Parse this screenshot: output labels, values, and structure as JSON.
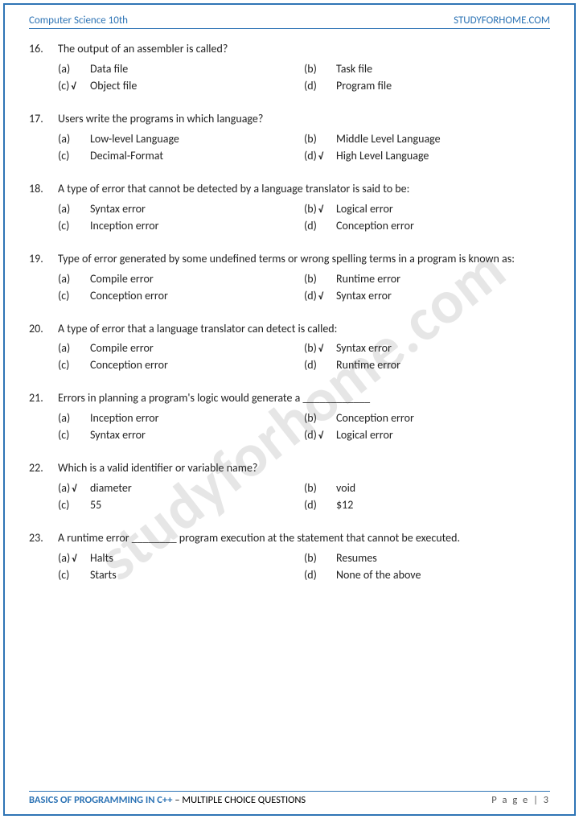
{
  "header": {
    "left": "Computer Science 10th",
    "right": "STUDYFORHOME.COM"
  },
  "watermark": "studyforhome.com",
  "footer": {
    "left_blue": "BASICS OF PROGRAMMING IN C++",
    "left_rest": " – MULTIPLE CHOICE QUESTIONS",
    "right": "P a g e  | 3"
  },
  "questions": [
    {
      "num": "16.",
      "text": "The output of an assembler is called?",
      "opts": [
        {
          "l": "(a)",
          "t": "Data file",
          "c": false
        },
        {
          "l": "(b)",
          "t": "Task file",
          "c": false
        },
        {
          "l": "(c)",
          "t": "Object file",
          "c": true
        },
        {
          "l": "(d)",
          "t": "Program file",
          "c": false
        }
      ]
    },
    {
      "num": "17.",
      "text": "Users write the programs in which language?",
      "opts": [
        {
          "l": "(a)",
          "t": "Low-level Language",
          "c": false
        },
        {
          "l": "(b)",
          "t": "Middle Level Language",
          "c": false
        },
        {
          "l": "(c)",
          "t": "Decimal-Format",
          "c": false
        },
        {
          "l": "(d)",
          "t": "High Level Language",
          "c": true
        }
      ]
    },
    {
      "num": "18.",
      "text": "A type of error that cannot be detected by a language translator is said to be:",
      "opts": [
        {
          "l": "(a)",
          "t": "Syntax error",
          "c": false
        },
        {
          "l": "(b)",
          "t": "Logical error",
          "c": true
        },
        {
          "l": "(c)",
          "t": "Inception error",
          "c": false
        },
        {
          "l": "(d)",
          "t": "Conception error",
          "c": false
        }
      ]
    },
    {
      "num": "19.",
      "text": "Type of error generated by some undefined terms or wrong spelling terms in a program is known as:",
      "opts": [
        {
          "l": "(a)",
          "t": "Compile error",
          "c": false
        },
        {
          "l": "(b)",
          "t": "Runtime error",
          "c": false
        },
        {
          "l": "(c)",
          "t": "Conception error",
          "c": false
        },
        {
          "l": "(d)",
          "t": "Syntax error",
          "c": true
        }
      ]
    },
    {
      "num": "20.",
      "text": "A type of error that a language translator can detect is called:",
      "opts": [
        {
          "l": "(a)",
          "t": "Compile error",
          "c": false
        },
        {
          "l": "(b)",
          "t": "Syntax error",
          "c": true
        },
        {
          "l": "(c)",
          "t": "Conception error",
          "c": false
        },
        {
          "l": "(d)",
          "t": "Runtime error",
          "c": false
        }
      ]
    },
    {
      "num": "21.",
      "text": "Errors in planning a program's logic would generate a ____________",
      "opts": [
        {
          "l": "(a)",
          "t": "Inception error",
          "c": false
        },
        {
          "l": "(b)",
          "t": "Conception error",
          "c": false
        },
        {
          "l": "(c)",
          "t": "Syntax error",
          "c": false
        },
        {
          "l": "(d)",
          "t": "Logical error",
          "c": true
        }
      ]
    },
    {
      "num": "22.",
      "text": "Which is a valid identifier or variable name?",
      "opts": [
        {
          "l": "(a)",
          "t": "diameter",
          "c": true
        },
        {
          "l": "(b)",
          "t": "void",
          "c": false
        },
        {
          "l": "(c)",
          "t": "55",
          "c": false
        },
        {
          "l": "(d)",
          "t": "$12",
          "c": false
        }
      ]
    },
    {
      "num": "23.",
      "text": "A runtime error ________ program execution at the statement that cannot be executed.",
      "opts": [
        {
          "l": "(a)",
          "t": "Halts",
          "c": true
        },
        {
          "l": "(b)",
          "t": "Resumes",
          "c": false
        },
        {
          "l": "(c)",
          "t": "Starts",
          "c": false
        },
        {
          "l": "(d)",
          "t": "None of the above",
          "c": false
        }
      ]
    }
  ]
}
